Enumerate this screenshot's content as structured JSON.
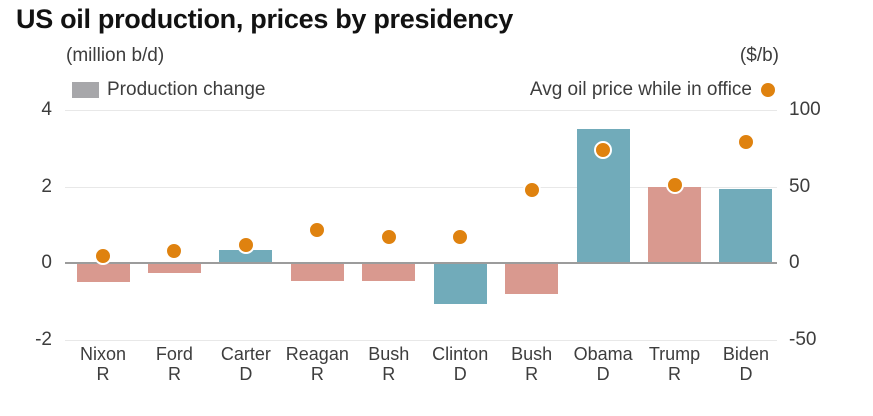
{
  "title": "US oil production, prices by presidency",
  "axes": {
    "left_unit_label": "(million b/d)",
    "right_unit_label": "($/b)"
  },
  "legend": {
    "bar_label": "Production change",
    "dot_label": "Avg oil price while in office"
  },
  "colors": {
    "dem_bar": "#71abba",
    "rep_bar": "#d9998f",
    "price_dot": "#df820f",
    "legend_swatch": "#a7a7aa",
    "grid": "#e8e8e8",
    "zero_line": "#9c9c9c",
    "title_text": "#121212",
    "axis_text": "#3d3d3d"
  },
  "chart_data": {
    "type": "bar",
    "title": "US oil production, prices by presidency",
    "categories": [
      "Nixon",
      "Ford",
      "Carter",
      "Reagan",
      "Bush",
      "Clinton",
      "Bush",
      "Obama",
      "Trump",
      "Biden"
    ],
    "parties": [
      "R",
      "R",
      "D",
      "R",
      "R",
      "D",
      "R",
      "D",
      "R",
      "D"
    ],
    "series": [
      {
        "name": "Production change",
        "type": "bar",
        "unit": "million b/d",
        "axis": "left",
        "values": [
          -0.5,
          -0.25,
          0.35,
          -0.45,
          -0.45,
          -1.05,
          -0.8,
          3.5,
          2.0,
          1.95
        ]
      },
      {
        "name": "Avg oil price while in office",
        "type": "scatter",
        "unit": "$/b",
        "axis": "right",
        "values": [
          5,
          8,
          12,
          22,
          17,
          17,
          48,
          74,
          51,
          79
        ]
      }
    ],
    "left_axis": {
      "label": "(million b/d)",
      "ticks": [
        4,
        2,
        0,
        -2
      ],
      "range": [
        -2,
        4
      ]
    },
    "right_axis": {
      "label": "($/b)",
      "ticks": [
        100,
        50,
        0,
        -50
      ],
      "range": [
        -50,
        100
      ]
    },
    "grid": "horizontal",
    "legend_position": "top",
    "bar_color_rule": "party: D=teal, R=pink"
  }
}
